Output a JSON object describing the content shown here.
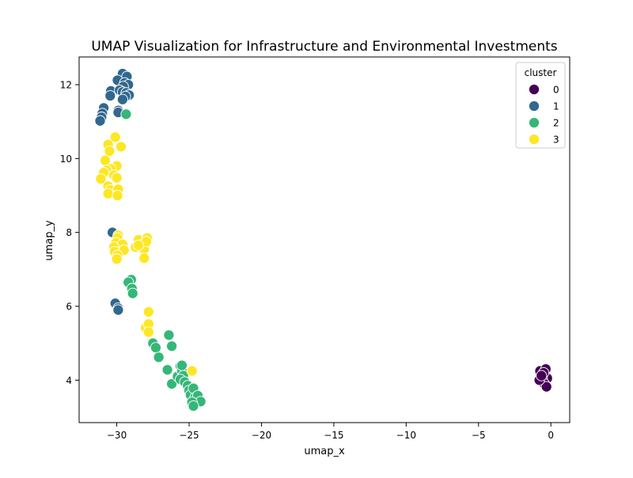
{
  "chart_data": {
    "type": "scatter",
    "title": "UMAP Visualization for Infrastructure and Environmental Investments",
    "xlabel": "umap_x",
    "ylabel": "umap_y",
    "xlim": [
      -32.6,
      1.3
    ],
    "ylim": [
      2.85,
      12.75
    ],
    "x_ticks": [
      -30,
      -25,
      -20,
      -15,
      -10,
      -5,
      0
    ],
    "x_tick_labels": [
      "−30",
      "−25",
      "−20",
      "−15",
      "−10",
      "−5",
      "0"
    ],
    "y_ticks": [
      4,
      6,
      8,
      10,
      12
    ],
    "y_tick_labels": [
      "4",
      "6",
      "8",
      "10",
      "12"
    ],
    "grid": false,
    "legend": {
      "title": "cluster",
      "placement": "top-right",
      "entries": [
        "0",
        "1",
        "2",
        "3"
      ]
    },
    "colors": {
      "0": "#440154",
      "1": "#31688e",
      "2": "#35b779",
      "3": "#fde725"
    },
    "series": [
      {
        "name": "0",
        "points": [
          [
            -0.75,
            4.25
          ],
          [
            -0.55,
            4.15
          ],
          [
            -0.35,
            4.3
          ],
          [
            -0.25,
            4.05
          ],
          [
            -0.6,
            4.05
          ],
          [
            -0.45,
            3.9
          ],
          [
            -0.3,
            3.82
          ],
          [
            -0.8,
            4.0
          ],
          [
            -0.5,
            4.2
          ],
          [
            -0.65,
            4.12
          ]
        ]
      },
      {
        "name": "1",
        "points": [
          [
            -29.6,
            12.3
          ],
          [
            -29.3,
            12.22
          ],
          [
            -29.95,
            12.12
          ],
          [
            -29.45,
            12.05
          ],
          [
            -29.2,
            12.0
          ],
          [
            -29.55,
            11.95
          ],
          [
            -30.4,
            11.83
          ],
          [
            -29.8,
            11.85
          ],
          [
            -29.6,
            11.8
          ],
          [
            -29.35,
            11.78
          ],
          [
            -29.15,
            11.72
          ],
          [
            -30.45,
            11.7
          ],
          [
            -29.4,
            11.68
          ],
          [
            -29.6,
            11.6
          ],
          [
            -29.9,
            11.3
          ],
          [
            -29.9,
            11.25
          ],
          [
            -30.9,
            11.37
          ],
          [
            -31.0,
            11.22
          ],
          [
            -31.05,
            11.12
          ],
          [
            -31.15,
            11.02
          ],
          [
            -30.3,
            8.0
          ],
          [
            -30.1,
            6.08
          ],
          [
            -29.9,
            5.95
          ],
          [
            -29.9,
            5.9
          ]
        ]
      },
      {
        "name": "2",
        "points": [
          [
            -29.35,
            11.2
          ],
          [
            -29.0,
            6.72
          ],
          [
            -29.2,
            6.65
          ],
          [
            -28.95,
            6.48
          ],
          [
            -28.9,
            6.35
          ],
          [
            -27.5,
            5.0
          ],
          [
            -27.3,
            4.88
          ],
          [
            -27.1,
            4.62
          ],
          [
            -26.4,
            5.22
          ],
          [
            -26.2,
            4.92
          ],
          [
            -26.5,
            4.28
          ],
          [
            -26.2,
            3.9
          ],
          [
            -25.8,
            4.1
          ],
          [
            -25.6,
            4.38
          ],
          [
            -25.5,
            4.25
          ],
          [
            -25.4,
            4.12
          ],
          [
            -25.6,
            4.02
          ],
          [
            -25.3,
            3.95
          ],
          [
            -25.1,
            3.85
          ],
          [
            -25.0,
            3.72
          ],
          [
            -24.9,
            3.6
          ],
          [
            -24.7,
            3.78
          ],
          [
            -24.6,
            3.52
          ],
          [
            -24.4,
            3.58
          ],
          [
            -24.2,
            3.42
          ],
          [
            -24.8,
            3.4
          ],
          [
            -24.7,
            3.3
          ],
          [
            -25.5,
            4.4
          ]
        ]
      },
      {
        "name": "3",
        "points": [
          [
            -30.1,
            10.58
          ],
          [
            -30.6,
            10.38
          ],
          [
            -29.7,
            10.32
          ],
          [
            -30.5,
            10.2
          ],
          [
            -30.8,
            9.95
          ],
          [
            -30.0,
            9.8
          ],
          [
            -30.4,
            9.72
          ],
          [
            -30.7,
            9.68
          ],
          [
            -30.9,
            9.62
          ],
          [
            -30.2,
            9.55
          ],
          [
            -30.0,
            9.48
          ],
          [
            -31.1,
            9.45
          ],
          [
            -30.6,
            9.25
          ],
          [
            -30.45,
            9.15
          ],
          [
            -29.9,
            9.17
          ],
          [
            -30.6,
            9.05
          ],
          [
            -29.95,
            9.0
          ],
          [
            -29.9,
            7.92
          ],
          [
            -29.95,
            7.85
          ],
          [
            -30.05,
            7.72
          ],
          [
            -29.6,
            7.68
          ],
          [
            -30.2,
            7.6
          ],
          [
            -30.15,
            7.48
          ],
          [
            -29.5,
            7.52
          ],
          [
            -29.95,
            7.38
          ],
          [
            -30.0,
            7.28
          ],
          [
            -28.7,
            7.6
          ],
          [
            -28.5,
            7.8
          ],
          [
            -28.2,
            7.68
          ],
          [
            -28.1,
            7.55
          ],
          [
            -27.9,
            7.85
          ],
          [
            -27.95,
            7.75
          ],
          [
            -28.1,
            7.3
          ],
          [
            -28.5,
            7.65
          ],
          [
            -27.8,
            5.85
          ],
          [
            -28.0,
            5.42
          ],
          [
            -27.8,
            5.52
          ],
          [
            -27.8,
            5.3
          ],
          [
            -24.8,
            4.25
          ]
        ]
      }
    ]
  }
}
